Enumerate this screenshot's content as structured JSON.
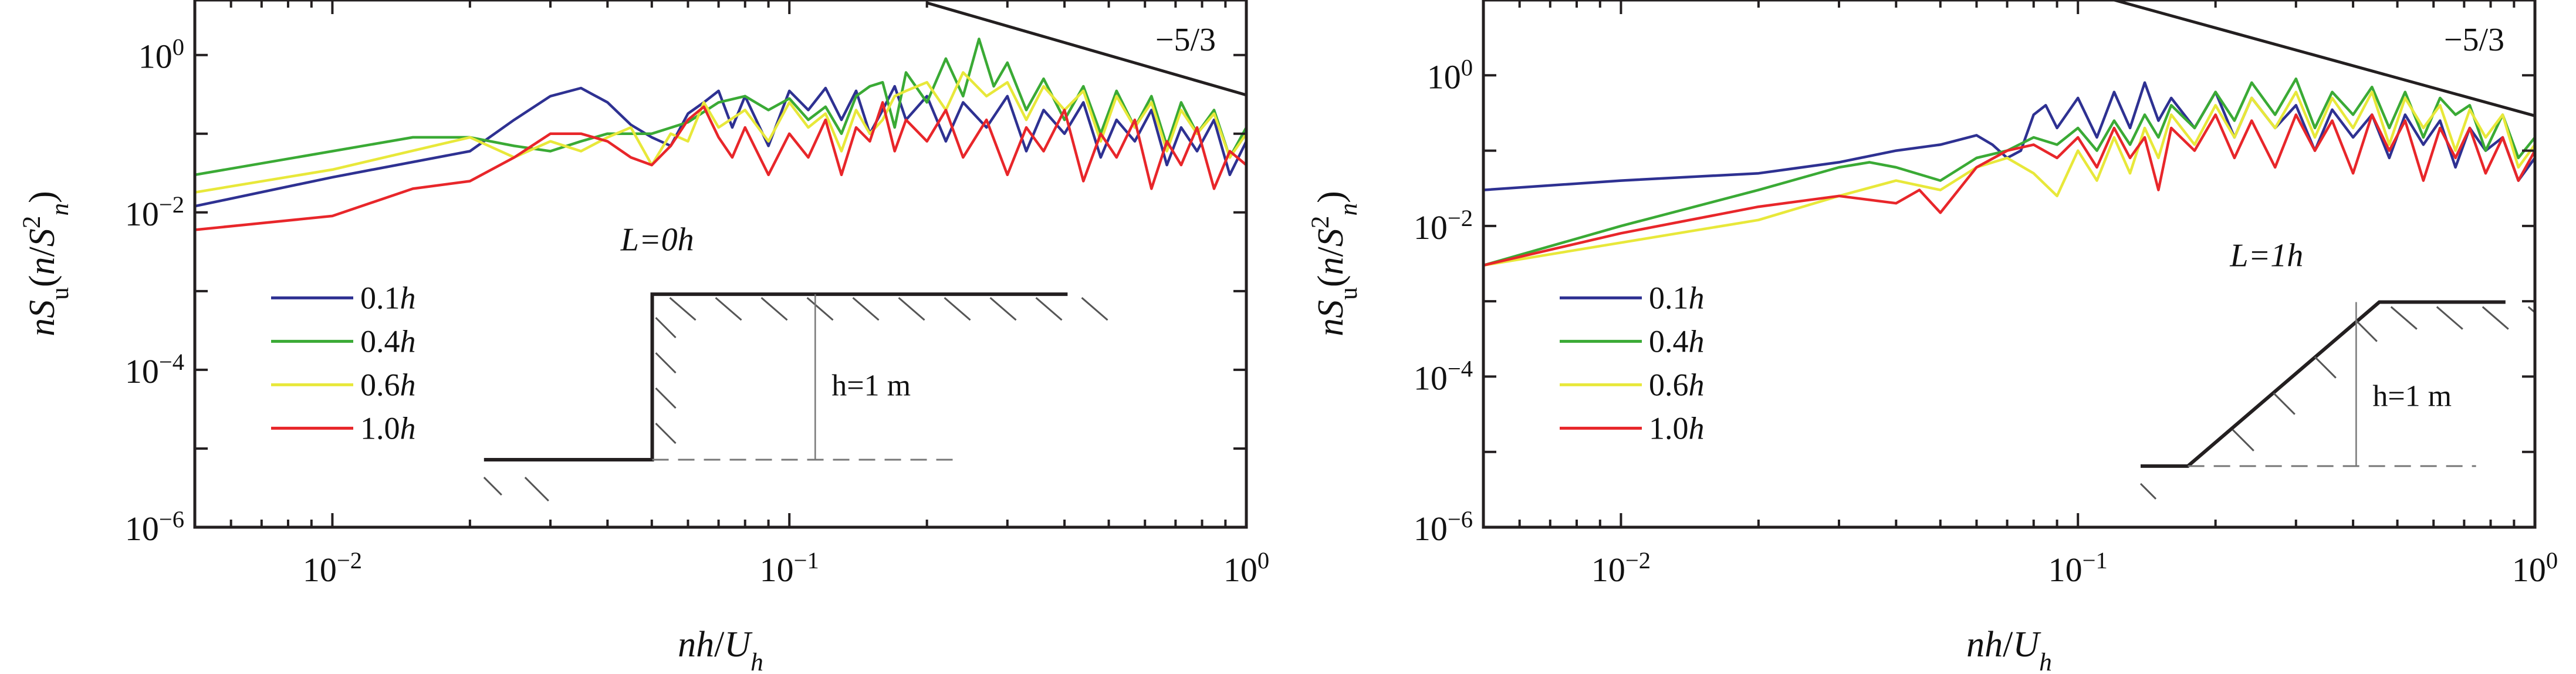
{
  "chart_data": [
    {
      "type": "line",
      "panel": "left",
      "xscale": "log",
      "yscale": "log",
      "xlim": [
        0.005,
        1
      ],
      "ylim": [
        1e-06,
        5
      ],
      "xlabel": "nh/U_h",
      "ylabel": "nS_u(n/S_n^2)",
      "x_ticks": [
        0.01,
        0.1,
        1
      ],
      "x_tick_labels": [
        "10^-2",
        "10^-1",
        "10^0"
      ],
      "y_ticks": [
        1e-06,
        0.0001,
        0.01,
        1
      ],
      "y_tick_labels": [
        "10^-6",
        "10^-4",
        "10^-2",
        "10^0"
      ],
      "slope_label": "−5/3",
      "slope_line": {
        "x": [
          0.2,
          1
        ],
        "y": [
          4.6,
          0.31
        ]
      },
      "inset": {
        "title": "L=0h",
        "height_label": "h=1 m",
        "slope_length_h": 0
      },
      "legend": [
        "0.1h",
        "0.4h",
        "0.6h",
        "1.0h"
      ],
      "series": [
        {
          "name": "0.1h",
          "color": "#2e3192",
          "x": [
            0.005,
            0.01,
            0.02,
            0.025,
            0.03,
            0.035,
            0.04,
            0.045,
            0.05,
            0.055,
            0.06,
            0.065,
            0.07,
            0.075,
            0.08,
            0.09,
            0.1,
            0.11,
            0.12,
            0.13,
            0.14,
            0.15,
            0.16,
            0.17,
            0.18,
            0.2,
            0.22,
            0.24,
            0.27,
            0.3,
            0.33,
            0.36,
            0.4,
            0.44,
            0.48,
            0.52,
            0.57,
            0.62,
            0.67,
            0.72,
            0.78,
            0.85,
            0.92,
            1.0
          ],
          "y": [
            0.012,
            0.028,
            0.06,
            0.15,
            0.3,
            0.38,
            0.25,
            0.13,
            0.09,
            0.07,
            0.18,
            0.25,
            0.35,
            0.12,
            0.3,
            0.07,
            0.35,
            0.2,
            0.38,
            0.15,
            0.35,
            0.1,
            0.2,
            0.4,
            0.15,
            0.3,
            0.08,
            0.25,
            0.12,
            0.3,
            0.06,
            0.2,
            0.1,
            0.25,
            0.05,
            0.15,
            0.08,
            0.2,
            0.04,
            0.12,
            0.06,
            0.15,
            0.03,
            0.08
          ]
        },
        {
          "name": "0.4h",
          "color": "#3aaa35",
          "x": [
            0.005,
            0.01,
            0.015,
            0.02,
            0.025,
            0.03,
            0.035,
            0.04,
            0.05,
            0.06,
            0.07,
            0.08,
            0.09,
            0.1,
            0.11,
            0.12,
            0.13,
            0.14,
            0.15,
            0.16,
            0.17,
            0.18,
            0.2,
            0.22,
            0.24,
            0.26,
            0.28,
            0.3,
            0.33,
            0.36,
            0.4,
            0.44,
            0.48,
            0.52,
            0.57,
            0.62,
            0.67,
            0.72,
            0.78,
            0.85,
            0.92,
            1.0
          ],
          "y": [
            0.03,
            0.06,
            0.09,
            0.09,
            0.07,
            0.06,
            0.08,
            0.1,
            0.1,
            0.14,
            0.25,
            0.3,
            0.2,
            0.28,
            0.15,
            0.22,
            0.1,
            0.3,
            0.4,
            0.45,
            0.12,
            0.6,
            0.25,
            0.9,
            0.3,
            1.6,
            0.4,
            0.8,
            0.2,
            0.5,
            0.15,
            0.4,
            0.1,
            0.35,
            0.12,
            0.3,
            0.07,
            0.25,
            0.1,
            0.2,
            0.05,
            0.12
          ]
        },
        {
          "name": "0.6h",
          "color": "#e8e83a",
          "x": [
            0.005,
            0.01,
            0.02,
            0.025,
            0.03,
            0.035,
            0.04,
            0.045,
            0.05,
            0.055,
            0.06,
            0.065,
            0.07,
            0.08,
            0.09,
            0.1,
            0.11,
            0.12,
            0.13,
            0.14,
            0.15,
            0.16,
            0.17,
            0.18,
            0.2,
            0.22,
            0.24,
            0.27,
            0.3,
            0.33,
            0.36,
            0.4,
            0.44,
            0.48,
            0.52,
            0.57,
            0.62,
            0.67,
            0.72,
            0.78,
            0.85,
            0.92,
            1.0
          ],
          "y": [
            0.018,
            0.035,
            0.09,
            0.05,
            0.08,
            0.06,
            0.09,
            0.12,
            0.04,
            0.1,
            0.08,
            0.25,
            0.12,
            0.2,
            0.08,
            0.25,
            0.12,
            0.18,
            0.06,
            0.2,
            0.1,
            0.15,
            0.3,
            0.35,
            0.45,
            0.2,
            0.6,
            0.3,
            0.45,
            0.15,
            0.4,
            0.2,
            0.35,
            0.08,
            0.3,
            0.12,
            0.25,
            0.06,
            0.2,
            0.1,
            0.18,
            0.05,
            0.1
          ]
        },
        {
          "name": "1.0h",
          "color": "#e8262a",
          "x": [
            0.005,
            0.01,
            0.015,
            0.02,
            0.025,
            0.03,
            0.035,
            0.04,
            0.045,
            0.05,
            0.055,
            0.06,
            0.065,
            0.07,
            0.075,
            0.08,
            0.09,
            0.1,
            0.11,
            0.12,
            0.13,
            0.14,
            0.15,
            0.16,
            0.17,
            0.18,
            0.2,
            0.22,
            0.24,
            0.27,
            0.3,
            0.33,
            0.36,
            0.4,
            0.44,
            0.48,
            0.52,
            0.57,
            0.62,
            0.67,
            0.72,
            0.78,
            0.85,
            0.92,
            1.0
          ],
          "y": [
            0.006,
            0.009,
            0.02,
            0.025,
            0.05,
            0.1,
            0.1,
            0.08,
            0.05,
            0.04,
            0.07,
            0.15,
            0.22,
            0.09,
            0.05,
            0.12,
            0.03,
            0.1,
            0.05,
            0.15,
            0.03,
            0.12,
            0.08,
            0.25,
            0.06,
            0.15,
            0.08,
            0.2,
            0.05,
            0.15,
            0.03,
            0.12,
            0.06,
            0.2,
            0.025,
            0.1,
            0.05,
            0.15,
            0.02,
            0.08,
            0.04,
            0.12,
            0.02,
            0.06,
            0.04
          ]
        }
      ]
    },
    {
      "type": "line",
      "panel": "right",
      "xscale": "log",
      "yscale": "log",
      "xlim": [
        0.005,
        1
      ],
      "ylim": [
        1e-06,
        10
      ],
      "xlabel": "nh/U_h",
      "ylabel": "nS_u(n/S_n^2)",
      "x_ticks": [
        0.01,
        0.1,
        1
      ],
      "x_tick_labels": [
        "10^-2",
        "10^-1",
        "10^0"
      ],
      "y_ticks": [
        1e-06,
        0.0001,
        0.01,
        1
      ],
      "y_tick_labels": [
        "10^-6",
        "10^-4",
        "10^-2",
        "10^0"
      ],
      "slope_label": "−5/3",
      "slope_line": {
        "x": [
          0.12,
          1
        ],
        "y": [
          10,
          0.29
        ]
      },
      "inset": {
        "title": "L=1h",
        "height_label": "h=1 m",
        "slope_length_h": 1
      },
      "legend": [
        "0.1h",
        "0.4h",
        "0.6h",
        "1.0h"
      ],
      "series": [
        {
          "name": "0.1h",
          "color": "#2e3192",
          "x": [
            0.005,
            0.01,
            0.02,
            0.03,
            0.04,
            0.05,
            0.06,
            0.065,
            0.07,
            0.075,
            0.08,
            0.085,
            0.09,
            0.1,
            0.11,
            0.12,
            0.13,
            0.14,
            0.15,
            0.16,
            0.18,
            0.2,
            0.22,
            0.24,
            0.27,
            0.3,
            0.33,
            0.36,
            0.4,
            0.44,
            0.48,
            0.52,
            0.57,
            0.62,
            0.67,
            0.72,
            0.78,
            0.85,
            0.92,
            1.0
          ],
          "y": [
            0.03,
            0.04,
            0.05,
            0.07,
            0.1,
            0.12,
            0.16,
            0.12,
            0.08,
            0.1,
            0.3,
            0.4,
            0.2,
            0.5,
            0.15,
            0.6,
            0.2,
            0.8,
            0.25,
            0.5,
            0.2,
            0.6,
            0.15,
            0.5,
            0.2,
            0.4,
            0.1,
            0.35,
            0.15,
            0.3,
            0.08,
            0.3,
            0.12,
            0.25,
            0.06,
            0.2,
            0.1,
            0.15,
            0.04,
            0.08
          ]
        },
        {
          "name": "0.4h",
          "color": "#3aaa35",
          "x": [
            0.005,
            0.01,
            0.02,
            0.03,
            0.035,
            0.04,
            0.05,
            0.06,
            0.07,
            0.08,
            0.09,
            0.1,
            0.11,
            0.12,
            0.13,
            0.14,
            0.15,
            0.16,
            0.18,
            0.2,
            0.22,
            0.24,
            0.27,
            0.3,
            0.33,
            0.36,
            0.4,
            0.44,
            0.48,
            0.52,
            0.57,
            0.62,
            0.67,
            0.72,
            0.78,
            0.85,
            0.92,
            1.0
          ],
          "y": [
            0.003,
            0.01,
            0.03,
            0.06,
            0.07,
            0.06,
            0.04,
            0.08,
            0.1,
            0.15,
            0.12,
            0.2,
            0.1,
            0.25,
            0.12,
            0.3,
            0.15,
            0.4,
            0.2,
            0.6,
            0.25,
            0.8,
            0.3,
            0.9,
            0.2,
            0.6,
            0.3,
            0.7,
            0.2,
            0.6,
            0.15,
            0.5,
            0.3,
            0.4,
            0.1,
            0.3,
            0.08,
            0.15
          ]
        },
        {
          "name": "0.6h",
          "color": "#e8e83a",
          "x": [
            0.005,
            0.01,
            0.02,
            0.03,
            0.04,
            0.05,
            0.06,
            0.07,
            0.08,
            0.09,
            0.1,
            0.11,
            0.12,
            0.13,
            0.14,
            0.15,
            0.16,
            0.18,
            0.2,
            0.22,
            0.24,
            0.27,
            0.3,
            0.33,
            0.36,
            0.4,
            0.44,
            0.48,
            0.52,
            0.57,
            0.62,
            0.67,
            0.72,
            0.78,
            0.85,
            0.92,
            1.0
          ],
          "y": [
            0.003,
            0.006,
            0.012,
            0.025,
            0.04,
            0.03,
            0.06,
            0.08,
            0.05,
            0.025,
            0.1,
            0.04,
            0.15,
            0.05,
            0.2,
            0.08,
            0.3,
            0.12,
            0.4,
            0.15,
            0.5,
            0.2,
            0.6,
            0.15,
            0.5,
            0.2,
            0.6,
            0.12,
            0.5,
            0.2,
            0.4,
            0.1,
            0.35,
            0.15,
            0.3,
            0.06,
            0.12
          ]
        },
        {
          "name": "1.0h",
          "color": "#e8262a",
          "x": [
            0.005,
            0.01,
            0.02,
            0.03,
            0.04,
            0.045,
            0.05,
            0.06,
            0.07,
            0.08,
            0.09,
            0.1,
            0.11,
            0.12,
            0.13,
            0.14,
            0.15,
            0.16,
            0.18,
            0.2,
            0.22,
            0.24,
            0.27,
            0.3,
            0.33,
            0.36,
            0.4,
            0.44,
            0.48,
            0.52,
            0.57,
            0.62,
            0.67,
            0.72,
            0.78,
            0.85,
            0.92,
            1.0
          ],
          "y": [
            0.003,
            0.008,
            0.018,
            0.025,
            0.02,
            0.03,
            0.015,
            0.06,
            0.1,
            0.12,
            0.08,
            0.15,
            0.06,
            0.2,
            0.08,
            0.15,
            0.03,
            0.2,
            0.1,
            0.3,
            0.08,
            0.25,
            0.06,
            0.3,
            0.1,
            0.25,
            0.05,
            0.3,
            0.1,
            0.25,
            0.04,
            0.2,
            0.08,
            0.2,
            0.05,
            0.15,
            0.04,
            0.1
          ]
        }
      ]
    }
  ]
}
